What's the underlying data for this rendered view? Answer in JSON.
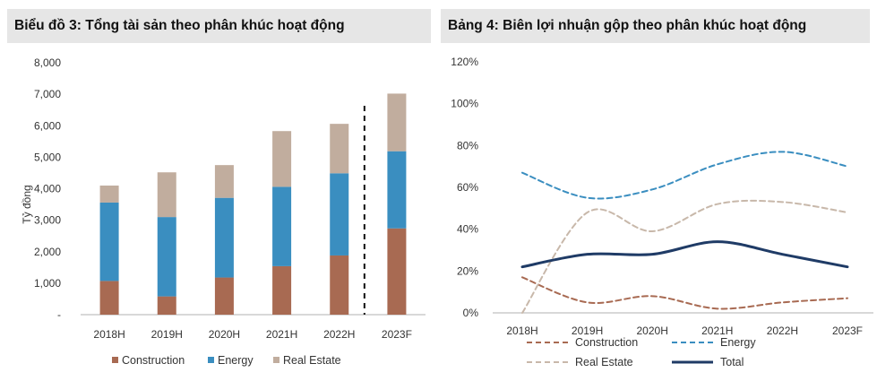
{
  "chart_data": [
    {
      "type": "bar",
      "stacked": true,
      "title": "Biểu đồ 3: Tổng tài sản theo phân khúc hoạt động",
      "ylabel": "Tỷ đồng",
      "ylim": [
        0,
        8000
      ],
      "yticks": [
        "-",
        "1,000",
        "2,000",
        "3,000",
        "4,000",
        "5,000",
        "6,000",
        "7,000",
        "8,000"
      ],
      "categories": [
        "2018H",
        "2019H",
        "2020H",
        "2021H",
        "2022H",
        "2023F"
      ],
      "series": [
        {
          "name": "Construction",
          "color": "#a86a52",
          "values": [
            1070,
            580,
            1180,
            1540,
            1880,
            2740
          ]
        },
        {
          "name": "Energy",
          "color": "#3a8ec0",
          "values": [
            2490,
            2520,
            2530,
            2520,
            2610,
            2450
          ]
        },
        {
          "name": "Real Estate",
          "color": "#c1ad9e",
          "values": [
            540,
            1420,
            1040,
            1770,
            1570,
            1830
          ]
        }
      ],
      "forecast_divider_after": "2022H",
      "legend": "bottom",
      "grid": false
    },
    {
      "type": "line",
      "title": "Bảng 4: Biên lợi nhuận gộp theo phân khúc hoạt động",
      "ylim": [
        0,
        120
      ],
      "yticks": [
        "0%",
        "20%",
        "40%",
        "60%",
        "80%",
        "100%",
        "120%"
      ],
      "categories": [
        "2018H",
        "2019H",
        "2020H",
        "2021H",
        "2022H",
        "2023F"
      ],
      "series": [
        {
          "name": "Construction",
          "color": "#a86a52",
          "dash": true,
          "values": [
            17,
            5,
            8,
            2,
            5,
            7
          ]
        },
        {
          "name": "Energy",
          "color": "#3a8ec0",
          "dash": true,
          "values": [
            67,
            55,
            59,
            71,
            77,
            70
          ]
        },
        {
          "name": "Real Estate",
          "color": "#c8b8aa",
          "dash": true,
          "values": [
            0,
            48,
            39,
            52,
            53,
            48
          ]
        },
        {
          "name": "Total",
          "color": "#1f3b66",
          "dash": false,
          "values": [
            22,
            28,
            28,
            34,
            28,
            22
          ]
        }
      ],
      "legend": "bottom",
      "grid": false
    }
  ]
}
